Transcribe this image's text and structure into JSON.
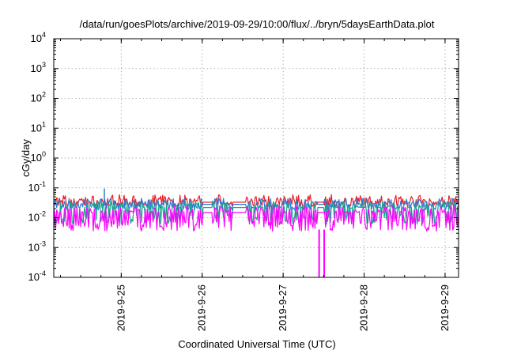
{
  "chart_data": {
    "type": "line",
    "title": "/data/run/goesPlots/archive/2019-09-29/10:00/flux/../bryn/5daysEarthData.plot",
    "xlabel": "Coordinated Universal Time (UTC)",
    "ylabel": "cGy/day",
    "yscale": "log",
    "ylim": [
      0.0001,
      10000
    ],
    "xlim": [
      "2019-09-24T04:00",
      "2019-09-29T04:00"
    ],
    "grid": true,
    "y_ticks": [
      {
        "base": "10",
        "exp": "-4",
        "value": 0.0001
      },
      {
        "base": "10",
        "exp": "-3",
        "value": 0.001
      },
      {
        "base": "10",
        "exp": "-2",
        "value": 0.01
      },
      {
        "base": "10",
        "exp": "-1",
        "value": 0.1
      },
      {
        "base": "10",
        "exp": "0",
        "value": 1
      },
      {
        "base": "10",
        "exp": "1",
        "value": 10
      },
      {
        "base": "10",
        "exp": "2",
        "value": 100
      },
      {
        "base": "10",
        "exp": "3",
        "value": 1000
      },
      {
        "base": "10",
        "exp": "4",
        "value": 10000
      }
    ],
    "x_ticks": [
      {
        "label": "2019-9-25",
        "value": "2019-09-25T00:00"
      },
      {
        "label": "2019-9-26",
        "value": "2019-09-26T00:00"
      },
      {
        "label": "2019-9-27",
        "value": "2019-09-27T00:00"
      },
      {
        "label": "2019-9-28",
        "value": "2019-09-28T00:00"
      },
      {
        "label": "2019-9-29",
        "value": "2019-09-29T00:00"
      }
    ],
    "series": [
      {
        "color": "#e8202a",
        "base": 0.033,
        "low": 0.024,
        "high": 0.06
      },
      {
        "color": "#2a7ad8",
        "base": 0.028,
        "low": 0.018,
        "high": 0.045
      },
      {
        "color": "#16a88a",
        "base": 0.022,
        "low": 0.006,
        "high": 0.035
      },
      {
        "color": "#ff00ff",
        "base": 0.015,
        "low": 0.0035,
        "high": 0.025
      }
    ],
    "gaps": [
      [
        "2019-09-26T00:00",
        "2019-09-26T03:00"
      ],
      [
        "2019-09-26T09:00",
        "2019-09-26T13:00"
      ],
      [
        "2019-09-27T10:00",
        "2019-09-27T12:00"
      ]
    ],
    "spike": {
      "x": "2019-09-24T19:00",
      "value": 0.095
    },
    "dropouts": [
      "2019-09-27T10:40",
      "2019-09-27T12:10"
    ]
  }
}
